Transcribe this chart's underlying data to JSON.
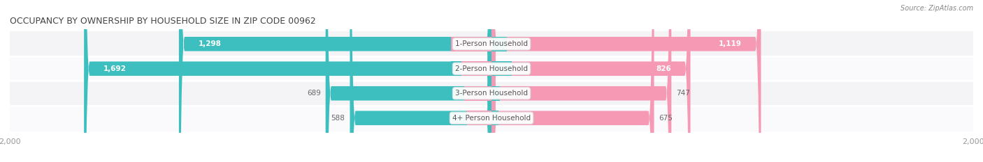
{
  "title": "OCCUPANCY BY OWNERSHIP BY HOUSEHOLD SIZE IN ZIP CODE 00962",
  "source": "Source: ZipAtlas.com",
  "categories": [
    "1-Person Household",
    "2-Person Household",
    "3-Person Household",
    "4+ Person Household"
  ],
  "owner_values": [
    1298,
    1692,
    689,
    588
  ],
  "renter_values": [
    1119,
    826,
    747,
    675
  ],
  "max_val": 2000,
  "owner_color": "#3DBFBF",
  "renter_color": "#F599B4",
  "row_bg_even": "#F4F4F6",
  "row_bg_odd": "#FAFAFC",
  "label_dark": "#666666",
  "label_white": "#FFFFFF",
  "title_color": "#444444",
  "source_color": "#888888",
  "axis_tick_color": "#999999",
  "figsize": [
    14.06,
    2.33
  ],
  "dpi": 100,
  "bar_height": 0.58,
  "inside_label_threshold": 800
}
